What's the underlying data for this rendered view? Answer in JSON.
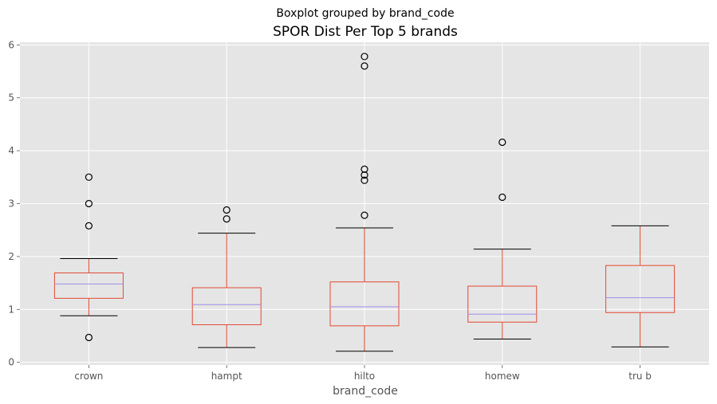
{
  "chart_data": {
    "type": "boxplot",
    "suptitle": "Boxplot grouped by brand_code",
    "title": "SPOR Dist Per Top 5 brands",
    "xlabel": "brand_code",
    "ylabel": "",
    "ylim": [
      -0.05,
      6.05
    ],
    "yticks": [
      "0",
      "1",
      "2",
      "3",
      "4",
      "5",
      "6"
    ],
    "grid": true,
    "categories": [
      "crown",
      "hampt",
      "hilto",
      "homew",
      "tru b"
    ],
    "boxes": [
      {
        "label": "crown",
        "whisker_low": 0.88,
        "q1": 1.21,
        "median": 1.48,
        "q3": 1.69,
        "whisker_high": 1.96,
        "outliers": [
          0.47,
          2.58,
          3.0,
          3.5
        ]
      },
      {
        "label": "hampt",
        "whisker_low": 0.28,
        "q1": 0.71,
        "median": 1.09,
        "q3": 1.41,
        "whisker_high": 2.44,
        "outliers": [
          2.71,
          2.88
        ]
      },
      {
        "label": "hilto",
        "whisker_low": 0.21,
        "q1": 0.69,
        "median": 1.05,
        "q3": 1.52,
        "whisker_high": 2.54,
        "outliers": [
          2.78,
          3.44,
          3.54,
          3.65,
          5.6,
          5.78
        ]
      },
      {
        "label": "homew",
        "whisker_low": 0.44,
        "q1": 0.76,
        "median": 0.91,
        "q3": 1.44,
        "whisker_high": 2.14,
        "outliers": [
          3.12,
          4.16
        ]
      },
      {
        "label": "tru b",
        "whisker_low": 0.29,
        "q1": 0.94,
        "median": 1.22,
        "q3": 1.83,
        "whisker_high": 2.58,
        "outliers": []
      }
    ],
    "colors": {
      "background": "#e5e5e5",
      "grid": "#ffffff",
      "box": "#e24a33",
      "median": "#9d8fe8",
      "cap": "#000000",
      "flier": "#000000"
    }
  }
}
